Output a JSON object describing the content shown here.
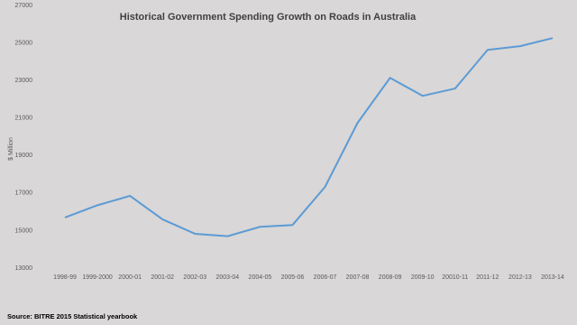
{
  "chart_data": {
    "type": "line",
    "title": "Historical Government Spending Growth on Roads in Australia",
    "y_label": "$ Million",
    "source": "Source: BITRE 2015 Statistical yearbook",
    "categories": [
      "1998-99",
      "1999-2000",
      "2000-01",
      "2001-02",
      "2002-03",
      "2003-04",
      "2004-05",
      "2005-06",
      "2006-07",
      "2007-08",
      "2008-09",
      "2009-10",
      "20010-11",
      "2011-12",
      "2012-13",
      "2013-14"
    ],
    "values": [
      15700,
      16350,
      16850,
      15600,
      14830,
      14700,
      15200,
      15300,
      17330,
      20740,
      23140,
      22180,
      22570,
      24630,
      24830,
      25260
    ],
    "color": "#5b9bd5",
    "ylim": [
      13000,
      27000
    ],
    "yticks": [
      13000,
      15000,
      17000,
      19000,
      21000,
      23000,
      25000,
      27000
    ],
    "grid": false
  }
}
